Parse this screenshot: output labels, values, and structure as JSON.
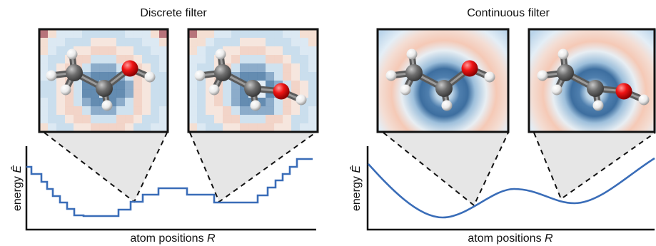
{
  "panels": [
    {
      "id": "discrete",
      "title": "Discrete filter",
      "ylabel_text": "energy ",
      "ylabel_symbol": "Ê",
      "xlabel_text": "atom positions ",
      "xlabel_symbol": "R",
      "curve": "step",
      "insets": [
        "discrete-filter-molecule-view-1",
        "discrete-filter-molecule-view-2"
      ]
    },
    {
      "id": "continuous",
      "title": "Continuous filter",
      "ylabel_text": "energy ",
      "ylabel_symbol": "Ê",
      "xlabel_text": "atom positions ",
      "xlabel_symbol": "R",
      "curve": "smooth",
      "insets": [
        "continuous-filter-molecule-view-1",
        "continuous-filter-molecule-view-2"
      ]
    }
  ],
  "colors": {
    "curve": "#3a6db8",
    "axis": "#111111",
    "zoom_fill": "#e6e6e6",
    "carbon": "#6b6b6b",
    "oxygen": "#e01616",
    "hydrogen": "#f2f2f2",
    "filter_blue": "#5b86b0",
    "filter_light_blue": "#c9dff0",
    "filter_red": "#f1c9b8",
    "filter_dark_red": "#9c4f5c"
  }
}
